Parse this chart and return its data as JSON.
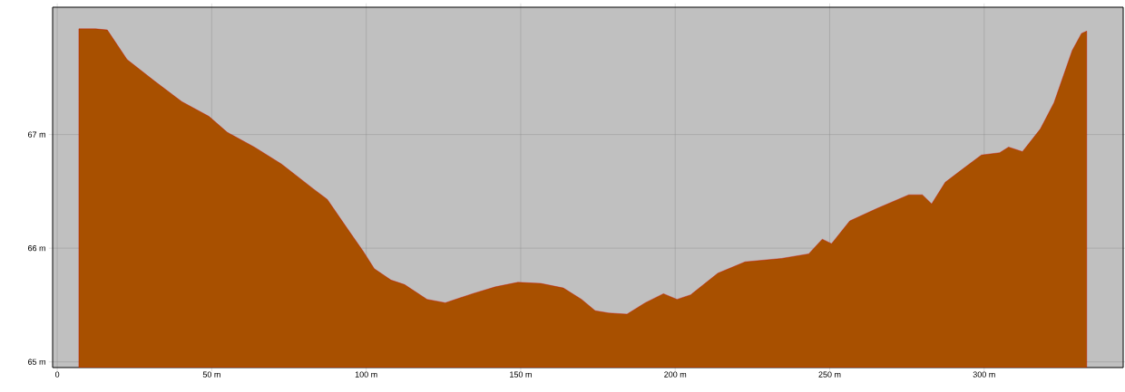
{
  "chart_data": {
    "type": "area",
    "color": "#a85000",
    "x": [
      7,
      12.4,
      16.2,
      22.6,
      31.5,
      40.3,
      49.1,
      55,
      63.8,
      72.6,
      83,
      87.4,
      93.2,
      99.1,
      102.6,
      108,
      112.4,
      119.7,
      125.6,
      134.4,
      141.8,
      149.1,
      156.5,
      163.8,
      169.7,
      174.1,
      178.5,
      184.4,
      190.3,
      196.2,
      200.6,
      205,
      213.8,
      222.6,
      234.4,
      243.2,
      247.6,
      250.6,
      256.5,
      265.3,
      275.6,
      280,
      283,
      287.4,
      293.2,
      299.1,
      305,
      307.9,
      312.4,
      318.2,
      322.6,
      328.5,
      331.5,
      333.2
    ],
    "values": [
      67.93,
      67.93,
      67.92,
      67.66,
      67.47,
      67.29,
      67.16,
      67.02,
      66.89,
      66.74,
      66.52,
      66.43,
      66.2,
      65.97,
      65.82,
      65.72,
      65.68,
      65.55,
      65.52,
      65.6,
      65.66,
      65.7,
      65.69,
      65.65,
      65.55,
      65.45,
      65.43,
      65.42,
      65.52,
      65.6,
      65.55,
      65.59,
      65.78,
      65.88,
      65.91,
      65.95,
      66.08,
      66.04,
      66.24,
      66.35,
      66.47,
      66.47,
      66.39,
      66.58,
      66.7,
      66.82,
      66.84,
      66.89,
      66.85,
      67.05,
      67.28,
      67.74,
      67.89,
      67.91
    ],
    "xlim": [
      -1.5,
      345
    ],
    "ylim": [
      64.95,
      68.12
    ],
    "xticks": [
      {
        "value": 0,
        "label": "0"
      },
      {
        "value": 50,
        "label": "50 m"
      },
      {
        "value": 100,
        "label": "100 m"
      },
      {
        "value": 150,
        "label": "150 m"
      },
      {
        "value": 200,
        "label": "200 m"
      },
      {
        "value": 250,
        "label": "250 m"
      },
      {
        "value": 300,
        "label": "300 m"
      }
    ],
    "yticks": [
      {
        "value": 65,
        "label": "65 m"
      },
      {
        "value": 66,
        "label": "66 m"
      },
      {
        "value": 67,
        "label": "67 m"
      }
    ],
    "grid": true
  }
}
